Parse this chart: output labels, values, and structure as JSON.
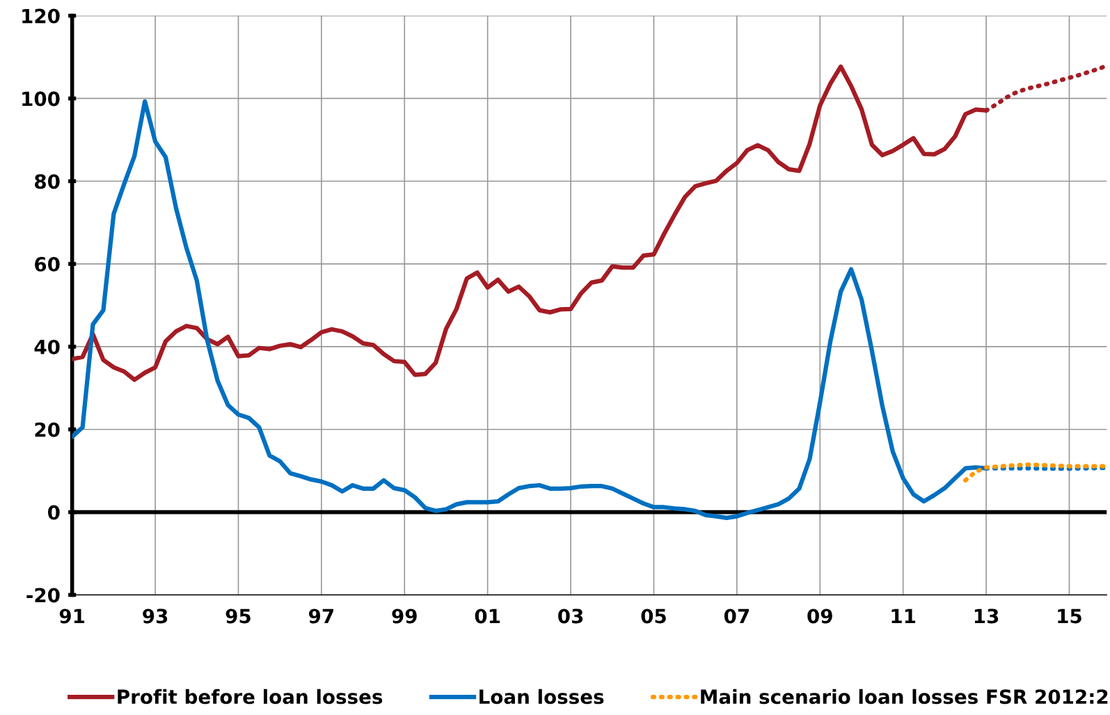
{
  "chart_data": {
    "type": "line",
    "xlim": [
      1991,
      2015.9
    ],
    "ylim": [
      -20,
      120
    ],
    "xticks": [
      {
        "value": 1991,
        "label": "91"
      },
      {
        "value": 1993,
        "label": "93"
      },
      {
        "value": 1995,
        "label": "95"
      },
      {
        "value": 1997,
        "label": "97"
      },
      {
        "value": 1999,
        "label": "99"
      },
      {
        "value": 2001,
        "label": "01"
      },
      {
        "value": 2003,
        "label": "03"
      },
      {
        "value": 2005,
        "label": "05"
      },
      {
        "value": 2007,
        "label": "07"
      },
      {
        "value": 2009,
        "label": "09"
      },
      {
        "value": 2011,
        "label": "11"
      },
      {
        "value": 2013,
        "label": "13"
      },
      {
        "value": 2015,
        "label": "15"
      }
    ],
    "yticks": [
      -20,
      0,
      20,
      40,
      60,
      80,
      100,
      120
    ],
    "grid": true,
    "legend": "bottom",
    "ref_lines": [
      {
        "axis": "y",
        "value": 0,
        "color": "#000000"
      }
    ],
    "series": [
      {
        "name": "Profit before loan losses",
        "color": "#a51c24",
        "line_style": "solid",
        "x": [
          1991,
          1991.25,
          1991.5,
          1991.75,
          1992,
          1992.25,
          1992.5,
          1992.75,
          1993,
          1993.25,
          1993.5,
          1993.75,
          1994,
          1994.25,
          1994.5,
          1994.75,
          1995,
          1995.25,
          1995.5,
          1995.75,
          1996,
          1996.25,
          1996.5,
          1996.75,
          1997,
          1997.25,
          1997.5,
          1997.75,
          1998,
          1998.25,
          1998.5,
          1998.75,
          1999,
          1999.25,
          1999.5,
          1999.75,
          2000,
          2000.25,
          2000.5,
          2000.75,
          2001,
          2001.25,
          2001.5,
          2001.75,
          2002,
          2002.25,
          2002.5,
          2002.75,
          2003,
          2003.25,
          2003.5,
          2003.75,
          2004,
          2004.25,
          2004.5,
          2004.75,
          2005,
          2005.25,
          2005.5,
          2005.75,
          2006,
          2006.25,
          2006.5,
          2006.75,
          2007,
          2007.25,
          2007.5,
          2007.75,
          2008,
          2008.25,
          2008.5,
          2008.75,
          2009,
          2009.25,
          2009.5,
          2009.75,
          2010,
          2010.25,
          2010.5,
          2010.75,
          2011,
          2011.25,
          2011.5,
          2011.75,
          2012,
          2012.25,
          2012.5,
          2012.75,
          2013
        ],
        "values": [
          37,
          37.5,
          43,
          36.8,
          35,
          34,
          32,
          33.7,
          35,
          41.3,
          43.7,
          45,
          44.5,
          41.8,
          40.6,
          42.4,
          37.7,
          37.9,
          39.7,
          39.4,
          40.2,
          40.6,
          39.9,
          41.6,
          43.5,
          44.2,
          43.7,
          42.5,
          40.8,
          40.4,
          38.2,
          36.5,
          36.3,
          33.2,
          33.4,
          36.1,
          44.3,
          49.1,
          56.5,
          57.9,
          54.3,
          56.2,
          53.3,
          54.5,
          52.2,
          48.8,
          48.3,
          49,
          49.1,
          52.9,
          55.5,
          56,
          59.4,
          59.1,
          59.1,
          62,
          62.3,
          67.3,
          71.9,
          76.2,
          78.8,
          79.5,
          80.1,
          82.5,
          84.4,
          87.5,
          88.7,
          87.5,
          84.6,
          82.9,
          82.5,
          89,
          98.3,
          103.6,
          107.7,
          103,
          97.4,
          88.8,
          86.3,
          87.3,
          88.8,
          90.4,
          86.6,
          86.5,
          87.8,
          90.8,
          96.2,
          97.3,
          97.1
        ]
      },
      {
        "name": "Loan losses",
        "color": "#0070c0",
        "line_style": "solid",
        "x": [
          1991,
          1991.25,
          1991.5,
          1991.75,
          1992,
          1992.25,
          1992.5,
          1992.75,
          1993,
          1993.25,
          1993.5,
          1993.75,
          1994,
          1994.25,
          1994.5,
          1994.75,
          1995,
          1995.25,
          1995.5,
          1995.75,
          1996,
          1996.25,
          1996.5,
          1996.75,
          1997,
          1997.25,
          1997.5,
          1997.75,
          1998,
          1998.25,
          1998.5,
          1998.75,
          1999,
          1999.25,
          1999.5,
          1999.75,
          2000,
          2000.25,
          2000.5,
          2000.75,
          2001,
          2001.25,
          2001.5,
          2001.75,
          2002,
          2002.25,
          2002.5,
          2002.75,
          2003,
          2003.25,
          2003.5,
          2003.75,
          2004,
          2004.25,
          2004.5,
          2004.75,
          2005,
          2005.25,
          2005.5,
          2005.75,
          2006,
          2006.25,
          2006.5,
          2006.75,
          2007,
          2007.25,
          2007.5,
          2007.75,
          2008,
          2008.25,
          2008.5,
          2008.75,
          2009,
          2009.25,
          2009.5,
          2009.75,
          2010,
          2010.25,
          2010.5,
          2010.75,
          2011,
          2011.25,
          2011.5,
          2011.75,
          2012,
          2012.25,
          2012.5,
          2012.75,
          2013
        ],
        "values": [
          18.2,
          20.5,
          45.4,
          48.8,
          72.1,
          79.3,
          86.1,
          99.3,
          89.6,
          85.8,
          73.5,
          63.9,
          56,
          41.6,
          31.8,
          25.9,
          23.6,
          22.8,
          20.5,
          13.7,
          12.3,
          9.4,
          8.7,
          7.9,
          7.4,
          6.5,
          5,
          6.5,
          5.7,
          5.7,
          7.7,
          5.8,
          5.3,
          3.6,
          1,
          0.3,
          0.7,
          1.9,
          2.4,
          2.4,
          2.4,
          2.6,
          4.3,
          5.8,
          6.3,
          6.5,
          5.7,
          5.7,
          5.8,
          6.2,
          6.3,
          6.3,
          5.7,
          4.5,
          3.3,
          2.1,
          1.2,
          1.2,
          0.9,
          0.7,
          0.3,
          -0.7,
          -1,
          -1.4,
          -1,
          -0.2,
          0.5,
          1.2,
          1.9,
          3.3,
          5.7,
          12.8,
          26.5,
          41.3,
          53.3,
          58.7,
          51.4,
          39,
          25.7,
          14.7,
          8.2,
          4.3,
          2.6,
          4.1,
          5.8,
          8.2,
          10.6,
          10.8,
          10.6
        ]
      },
      {
        "color": "#a51c24",
        "line_style": "dotted",
        "x": [
          2013,
          2013.25,
          2013.5,
          2013.75,
          2014,
          2014.25,
          2014.5,
          2014.75,
          2015,
          2015.25,
          2015.5,
          2015.75,
          2015.9
        ],
        "values": [
          97.1,
          98.6,
          100.3,
          101.6,
          102.4,
          103,
          103.6,
          104.3,
          105,
          105.7,
          106.5,
          107.3,
          108
        ]
      },
      {
        "color": "#0070c0",
        "line_style": "dotted",
        "x": [
          2013,
          2013.5,
          2014,
          2014.5,
          2015,
          2015.5,
          2015.9
        ],
        "values": [
          10.6,
          10.6,
          10.6,
          10.5,
          10.5,
          10.6,
          10.7
        ]
      },
      {
        "name": "Main scenario loan losses FSR 2012:2",
        "color": "#ff9900",
        "line_style": "dotted",
        "x": [
          2012.5,
          2012.75,
          2013,
          2013.25,
          2013.5,
          2014,
          2014.5,
          2015,
          2015.5,
          2015.9
        ],
        "values": [
          7.7,
          9.8,
          10.8,
          11,
          11.2,
          11.5,
          11.3,
          11.1,
          11.1,
          11.1
        ]
      }
    ]
  }
}
